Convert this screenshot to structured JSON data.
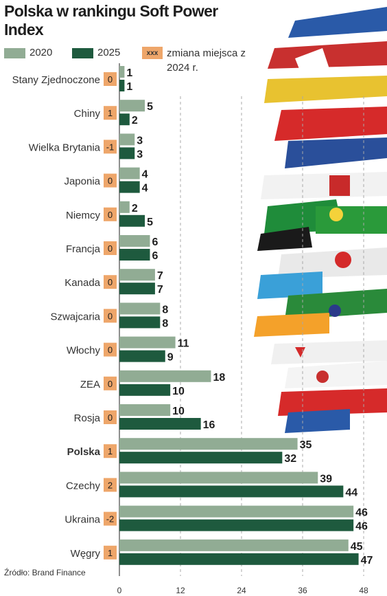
{
  "title": "Polska w rankingu Soft Power Index",
  "legend": {
    "series_2020": "2020",
    "series_2025": "2025",
    "change_sample": "xxx",
    "change_label": "zmiana miejsca z 2024 r."
  },
  "source": "Źródło: Brand Finance",
  "colors": {
    "series_2020": "#91ac94",
    "series_2025": "#1e5a3e",
    "change_badge": "#eea66a",
    "grid": "#a8a8a8"
  },
  "chart_data": {
    "type": "bar",
    "orientation": "horizontal",
    "categories": [
      "Stany Zjednoczone",
      "Chiny",
      "Wielka Brytania",
      "Japonia",
      "Niemcy",
      "Francja",
      "Kanada",
      "Szwajcaria",
      "Włochy",
      "ZEA",
      "Rosja",
      "Polska",
      "Czechy",
      "Ukraina",
      "Węgry"
    ],
    "highlight": "Polska",
    "series": [
      {
        "name": "2020",
        "values": [
          1,
          5,
          3,
          4,
          2,
          6,
          7,
          8,
          11,
          18,
          10,
          35,
          39,
          46,
          45
        ]
      },
      {
        "name": "2025",
        "values": [
          1,
          2,
          3,
          4,
          5,
          6,
          7,
          8,
          9,
          10,
          16,
          32,
          44,
          46,
          47
        ]
      }
    ],
    "change": [
      "0",
      "1",
      "-1",
      "0",
      "0",
      "0",
      "0",
      "0",
      "0",
      "0",
      "0",
      "1",
      "2",
      "-2",
      "1"
    ],
    "xlim": [
      0,
      48
    ],
    "xticks": [
      0,
      12,
      24,
      36,
      48
    ],
    "grid": true
  }
}
